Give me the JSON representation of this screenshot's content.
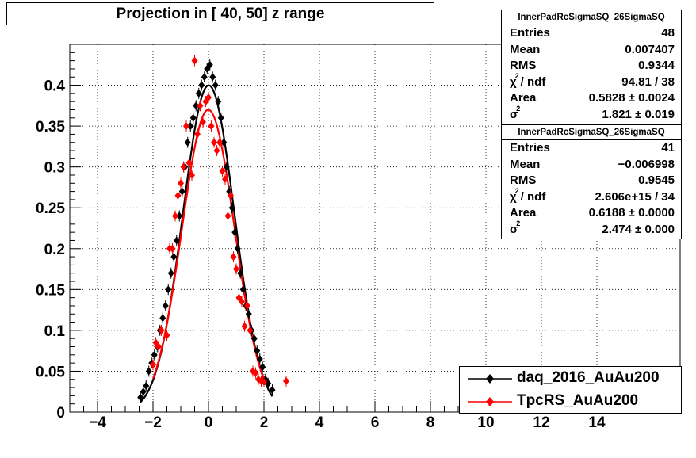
{
  "title": "Projection in [  40,  50] z range",
  "stats": [
    {
      "name": "InnerPadRcSigmaSQ_26SigmaSQ",
      "entries_label": "Entries",
      "entries": "48",
      "mean_label": "Mean",
      "mean": "0.007407",
      "rms_label": "RMS",
      "rms": "0.9344",
      "chi_label": "/ ndf",
      "chi": "94.81 / 38",
      "area_label": "Area",
      "area": "0.5828 ± 0.0024",
      "sigma": "1.821 ± 0.019"
    },
    {
      "name": "InnerPadRcSigmaSQ_26SigmaSQ",
      "entries_label": "Entries",
      "entries": "41",
      "mean_label": "Mean",
      "mean": "−0.006998",
      "rms_label": "RMS",
      "rms": "0.9545",
      "chi_label": "/ ndf",
      "chi": "2.606e+15 / 34",
      "area_label": "Area",
      "area": "0.6188 ± 0.0000",
      "sigma": "2.474 ± 0.000"
    }
  ],
  "legend": [
    {
      "label": "daq_2016_AuAu200",
      "color": "#000000"
    },
    {
      "label": "TpcRS_AuAu200",
      "color": "#ff0000"
    }
  ],
  "chart_data": {
    "type": "scatter",
    "title": "Projection in [  40,  50] z range",
    "xlim": [
      -5,
      17
    ],
    "ylim": [
      0,
      0.45
    ],
    "x_ticks": [
      -4,
      -2,
      0,
      2,
      4,
      6,
      8,
      10,
      12,
      14
    ],
    "x_tick_labels": [
      "−4",
      "−2",
      "0",
      "2",
      "4",
      "6",
      "8",
      "10",
      "12",
      "14"
    ],
    "y_ticks": [
      0,
      0.05,
      0.1,
      0.15,
      0.2,
      0.25,
      0.3,
      0.35,
      0.4
    ],
    "y_tick_labels": [
      "0",
      "0.05",
      "0.1",
      "0.15",
      "0.2",
      "0.25",
      "0.3",
      "0.35",
      "0.4"
    ],
    "grid": true,
    "legend_position": "bottom-right",
    "series": [
      {
        "name": "daq_2016_AuAu200",
        "color": "#000000",
        "marker": "diamond",
        "x": [
          -2.45,
          -2.35,
          -2.25,
          -2.15,
          -2.05,
          -1.95,
          -1.85,
          -1.75,
          -1.65,
          -1.55,
          -1.45,
          -1.35,
          -1.25,
          -1.15,
          -1.05,
          -0.95,
          -0.85,
          -0.75,
          -0.65,
          -0.55,
          -0.45,
          -0.35,
          -0.25,
          -0.15,
          -0.05,
          0.05,
          0.15,
          0.25,
          0.35,
          0.45,
          0.55,
          0.65,
          0.75,
          0.85,
          0.95,
          1.05,
          1.15,
          1.25,
          1.35,
          1.45,
          1.55,
          1.65,
          1.75,
          1.85,
          1.95,
          2.05,
          2.15,
          2.3
        ],
        "y": [
          0.018,
          0.025,
          0.032,
          0.05,
          0.06,
          0.07,
          0.08,
          0.1,
          0.115,
          0.13,
          0.15,
          0.17,
          0.19,
          0.21,
          0.24,
          0.27,
          0.3,
          0.33,
          0.35,
          0.36,
          0.375,
          0.39,
          0.4,
          0.41,
          0.42,
          0.425,
          0.41,
          0.4,
          0.38,
          0.36,
          0.33,
          0.3,
          0.27,
          0.25,
          0.22,
          0.2,
          0.17,
          0.15,
          0.13,
          0.12,
          0.1,
          0.09,
          0.075,
          0.065,
          0.055,
          0.04,
          0.035,
          0.027
        ]
      },
      {
        "name": "TpcRS_AuAu200",
        "color": "#ff0000",
        "marker": "diamond",
        "x": [
          -2.0,
          -1.9,
          -1.8,
          -1.7,
          -1.5,
          -1.4,
          -1.3,
          -1.2,
          -1.1,
          -1.0,
          -0.9,
          -0.8,
          -0.7,
          -0.6,
          -0.5,
          -0.4,
          -0.3,
          -0.2,
          -0.1,
          0.0,
          0.1,
          0.2,
          0.3,
          0.4,
          0.5,
          0.6,
          0.7,
          0.8,
          0.9,
          1.0,
          1.1,
          1.2,
          1.3,
          1.4,
          1.5,
          1.6,
          1.7,
          1.8,
          1.9,
          2.0,
          2.8
        ],
        "y": [
          0.058,
          0.085,
          0.08,
          0.1,
          0.094,
          0.2,
          0.2,
          0.24,
          0.265,
          0.28,
          0.3,
          0.35,
          0.305,
          0.29,
          0.43,
          0.34,
          0.375,
          0.355,
          0.38,
          0.385,
          0.35,
          0.33,
          0.32,
          0.33,
          0.295,
          0.285,
          0.24,
          0.265,
          0.19,
          0.175,
          0.14,
          0.135,
          0.105,
          0.13,
          0.1,
          0.05,
          0.048,
          0.04,
          0.038,
          0.037,
          0.038
        ]
      }
    ],
    "fit_curves": [
      {
        "series": "daq_2016_AuAu200",
        "type": "gaussian",
        "amplitude": 0.4,
        "mean": 0.007,
        "sigma": 0.93,
        "x_range": [
          -2.45,
          2.3
        ]
      },
      {
        "series": "TpcRS_AuAu200",
        "type": "gaussian",
        "amplitude": 0.37,
        "mean": -0.007,
        "sigma": 0.95,
        "x_range": [
          -2.0,
          2.0
        ]
      }
    ]
  }
}
